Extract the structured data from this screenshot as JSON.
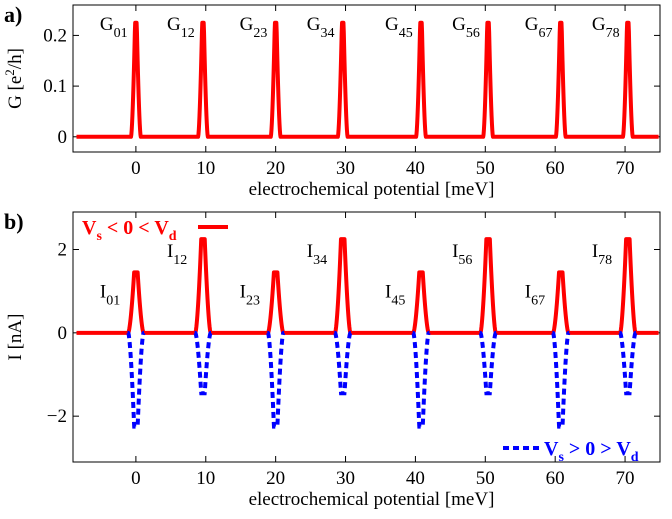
{
  "chart_data": [
    {
      "panel": "a)",
      "type": "line",
      "ylabel": "G [e²/h]",
      "ylabel_main": "G [e",
      "ylabel_sup": "2",
      "ylabel_tail": "/h]",
      "xlabel": "electrochemical potential [meV]",
      "xlim": [
        -9,
        75
      ],
      "ylim": [
        -0.03,
        0.26
      ],
      "xticks": [
        0,
        10,
        20,
        30,
        40,
        50,
        60,
        70
      ],
      "yticks": [
        0,
        0.1,
        0.2
      ],
      "ytick_labels": [
        "0",
        "0.1",
        "0.2"
      ],
      "peak_positions": [
        0,
        9.6,
        20.0,
        29.6,
        40.8,
        50.4,
        60.8,
        70.4
      ],
      "peak_height": 0.225,
      "peak_labels": [
        {
          "base": "G",
          "sub": "01"
        },
        {
          "base": "G",
          "sub": "12"
        },
        {
          "base": "G",
          "sub": "23"
        },
        {
          "base": "G",
          "sub": "34"
        },
        {
          "base": "G",
          "sub": "45"
        },
        {
          "base": "G",
          "sub": "56"
        },
        {
          "base": "G",
          "sub": "67"
        },
        {
          "base": "G",
          "sub": "78"
        }
      ],
      "series": [
        {
          "color": "#ff0000",
          "style": "solid"
        }
      ]
    },
    {
      "panel": "b)",
      "type": "line",
      "ylabel": "I [nA]",
      "xlabel": "electrochemical potential [meV]",
      "xlim": [
        -9,
        75
      ],
      "ylim": [
        -3.1,
        2.9
      ],
      "xticks": [
        0,
        10,
        20,
        30,
        40,
        50,
        60,
        70
      ],
      "yticks": [
        -2,
        0,
        2
      ],
      "ytick_labels": [
        "−2",
        "0",
        "2"
      ],
      "peak_positions": [
        0,
        9.6,
        20.0,
        29.6,
        40.8,
        50.4,
        60.8,
        70.4
      ],
      "peak_labels": [
        {
          "base": "I",
          "sub": "01"
        },
        {
          "base": "I",
          "sub": "12"
        },
        {
          "base": "I",
          "sub": "23"
        },
        {
          "base": "I",
          "sub": "34"
        },
        {
          "base": "I",
          "sub": "45"
        },
        {
          "base": "I",
          "sub": "56"
        },
        {
          "base": "I",
          "sub": "67"
        },
        {
          "base": "I",
          "sub": "78"
        }
      ],
      "series": [
        {
          "legend": {
            "a": "V",
            "a_sub": "s",
            "b": " < 0 < V",
            "b_sub": "d"
          },
          "color": "#ff0000",
          "style": "solid",
          "peak_values": [
            1.45,
            2.25,
            1.45,
            2.25,
            1.45,
            2.25,
            1.45,
            2.25
          ]
        },
        {
          "legend": {
            "a": "V",
            "a_sub": "s",
            "b": " > 0 > V",
            "b_sub": "d"
          },
          "color": "#0000ff",
          "style": "dashed",
          "peak_values": [
            -2.25,
            -1.45,
            -2.25,
            -1.45,
            -2.25,
            -1.45,
            -2.25,
            -1.45
          ]
        }
      ]
    }
  ]
}
